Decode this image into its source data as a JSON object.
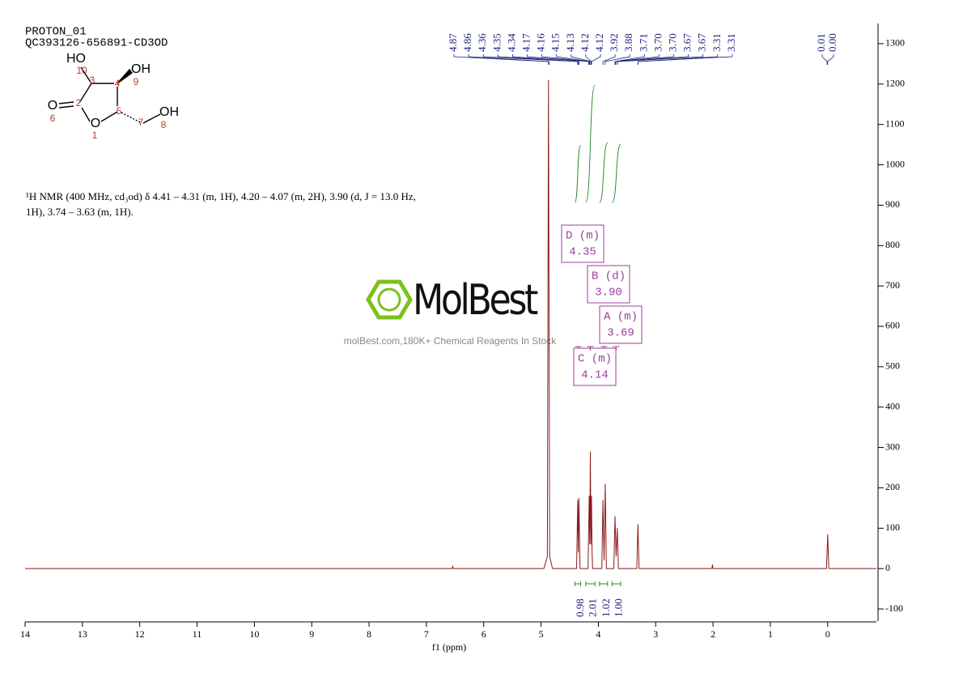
{
  "chart_data": {
    "type": "line",
    "title": "PROTON_01",
    "subtitle": "QC393126-656891-CD3OD",
    "description": [
      "¹H NMR (400 MHz, cd₃od) δ 4.41 – 4.31 (m, 1H), 4.20 – 4.07 (m, 2H), 3.90 (d, J = 13.0 Hz,",
      "1H), 3.74 – 3.63 (m, 1H)."
    ],
    "x_label": "f1 (ppm)",
    "xlim": [
      14,
      -0.85
    ],
    "xticks": [
      14,
      13,
      12,
      11,
      10,
      9,
      8,
      7,
      6,
      5,
      4,
      3,
      2,
      1,
      0
    ],
    "ylim": [
      -130,
      1350
    ],
    "yticks": [
      -100,
      0,
      100,
      200,
      300,
      400,
      500,
      600,
      700,
      800,
      900,
      1000,
      1100,
      1200,
      1300
    ],
    "series": [
      {
        "name": "spectrum",
        "color": "#8b1a1a",
        "x": [
          14,
          6.55,
          6.54,
          6.53,
          4.95,
          4.89,
          4.87,
          4.85,
          4.8,
          4.38,
          4.36,
          4.35,
          4.34,
          4.32,
          4.18,
          4.16,
          4.15,
          4.14,
          4.13,
          4.12,
          4.11,
          4.1,
          3.94,
          3.92,
          3.9,
          3.88,
          3.86,
          3.73,
          3.71,
          3.69,
          3.67,
          3.65,
          3.33,
          3.31,
          3.29,
          2.02,
          2.01,
          2.0,
          0.02,
          0.0,
          -0.02,
          -0.85
        ],
        "values": [
          0,
          0,
          5,
          0,
          0,
          30,
          1210,
          30,
          0,
          0,
          170,
          40,
          175,
          0,
          0,
          180,
          60,
          290,
          60,
          180,
          40,
          0,
          0,
          170,
          20,
          210,
          0,
          0,
          130,
          30,
          100,
          0,
          0,
          110,
          0,
          0,
          10,
          0,
          0,
          85,
          0,
          0
        ]
      }
    ],
    "peaks": {
      "color": "#1a237e",
      "x": [
        4.87,
        4.86,
        4.36,
        4.35,
        4.34,
        4.17,
        4.16,
        4.15,
        4.13,
        4.12,
        4.12,
        3.92,
        3.88,
        3.71,
        3.7,
        3.7,
        3.67,
        3.67,
        3.31,
        3.31,
        0.01,
        0.0
      ],
      "value_labels": [
        "4.87",
        "4.86",
        "4.36",
        "4.35",
        "4.34",
        "4.17",
        "4.16",
        "4.15",
        "4.13",
        "4.12",
        "4.12",
        "3.92",
        "3.88",
        "3.71",
        "3.70",
        "3.70",
        "3.67",
        "3.67",
        "3.31",
        "3.31",
        "0.01",
        "0.00"
      ]
    },
    "integrals": {
      "color": "#2e8b2e",
      "ranges": [
        [
          4.41,
          4.31
        ],
        [
          4.22,
          4.06
        ],
        [
          3.98,
          3.84
        ],
        [
          3.76,
          3.61
        ]
      ],
      "values": [
        0.98,
        2.01,
        1.02,
        1.0
      ],
      "value_labels": [
        "0.98",
        "2.01",
        "1.02",
        "1.00"
      ]
    },
    "multiplets": {
      "color": "#9c3d9c",
      "labels": [
        "D (m)",
        "B (d)",
        "A (m)",
        "C (m)"
      ],
      "shifts": [
        4.35,
        3.9,
        3.69,
        4.14
      ],
      "shift_labels": [
        "4.35",
        "3.90",
        "3.69",
        "4.14"
      ]
    },
    "watermark": {
      "brand": "MolBest",
      "tagline": "molBest.com,180K+ Chemical Reagents In Stock"
    },
    "molecule": {
      "atoms": [
        "HO",
        "OH",
        "O",
        "O",
        "OH"
      ],
      "numbers": [
        1,
        2,
        3,
        4,
        5,
        6,
        7,
        8,
        9,
        10
      ]
    }
  }
}
